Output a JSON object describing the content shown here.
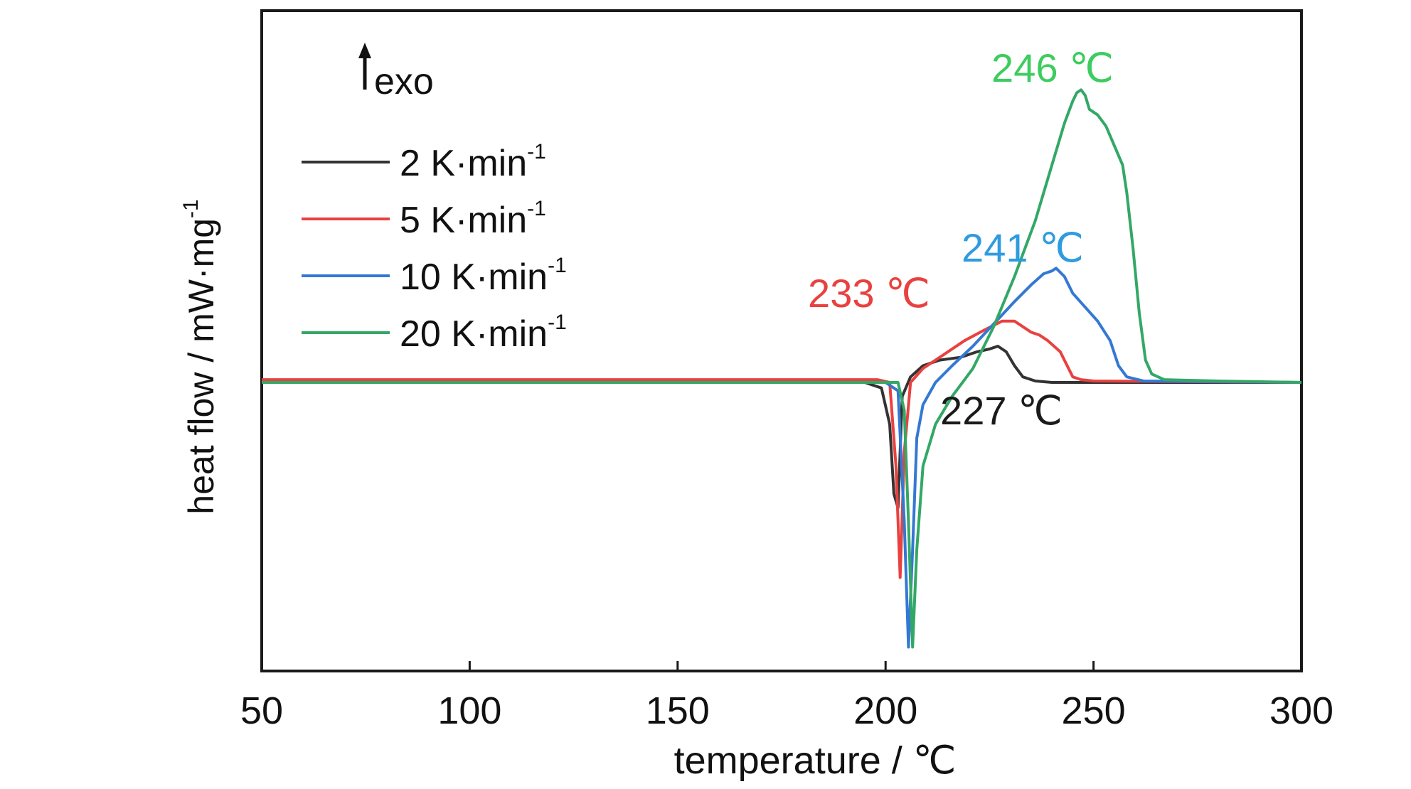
{
  "chart_data": {
    "type": "line",
    "xlabel": "temperature / ℃",
    "ylabel": "heat flow / mW·mg",
    "ylabel_sup": "-1",
    "xlim": [
      50,
      300
    ],
    "xticks": [
      "50",
      "100",
      "150",
      "200",
      "250",
      "300"
    ],
    "ylim": [
      -1.0,
      1.2
    ],
    "grid": false,
    "exo_label": "exo",
    "legend_position": "top-left",
    "series": [
      {
        "name": "2 K·min",
        "name_sup": "-1",
        "color": "#333333",
        "x": [
          50,
          195,
          199,
          201,
          202,
          203,
          204,
          206,
          209,
          213,
          218,
          222,
          225,
          227,
          229,
          231,
          233,
          236,
          240,
          250,
          300
        ],
        "y": [
          0,
          0,
          -0.02,
          -0.15,
          -0.4,
          -0.45,
          -0.05,
          0.02,
          0.06,
          0.08,
          0.09,
          0.11,
          0.12,
          0.13,
          0.11,
          0.06,
          0.02,
          0.005,
          0,
          0,
          0
        ]
      },
      {
        "name": "5 K·min",
        "name_sup": "-1",
        "color": "#e8413f",
        "x": [
          50,
          198,
          201,
          202.5,
          203.5,
          204.5,
          206,
          209,
          214,
          219,
          224,
          228,
          231,
          233,
          235,
          237,
          239,
          242,
          244,
          245,
          247,
          250,
          300
        ],
        "y": [
          0.01,
          0.01,
          0.0,
          -0.3,
          -0.7,
          -0.25,
          0.0,
          0.05,
          0.1,
          0.15,
          0.19,
          0.22,
          0.22,
          0.2,
          0.18,
          0.17,
          0.15,
          0.11,
          0.05,
          0.02,
          0.01,
          0.005,
          0.0
        ]
      },
      {
        "name": "10 K·min",
        "name_sup": "-1",
        "color": "#3478d4",
        "x": [
          50,
          200,
          203,
          204.5,
          205.5,
          206.5,
          207.5,
          209,
          212,
          216,
          221,
          226,
          231,
          235,
          238,
          240,
          241,
          243,
          245,
          248,
          251,
          254,
          256,
          258,
          262,
          300
        ],
        "y": [
          0,
          0,
          -0.03,
          -0.5,
          -0.95,
          -0.6,
          -0.2,
          -0.08,
          0.0,
          0.06,
          0.13,
          0.21,
          0.29,
          0.35,
          0.39,
          0.4,
          0.41,
          0.38,
          0.32,
          0.27,
          0.22,
          0.15,
          0.06,
          0.02,
          0.005,
          0.0
        ]
      },
      {
        "name": "20 K·min",
        "name_sup": "-1",
        "color": "#33a866",
        "x": [
          50,
          203,
          204.5,
          205.5,
          206.5,
          207.5,
          209,
          212,
          216,
          221,
          226,
          231,
          236,
          240,
          243,
          245,
          246,
          247,
          248,
          249,
          251,
          253,
          255,
          257,
          258,
          259.5,
          261,
          262.5,
          264,
          267,
          280,
          300
        ],
        "y": [
          0,
          0,
          -0.1,
          -0.5,
          -0.95,
          -0.6,
          -0.3,
          -0.15,
          -0.05,
          0.05,
          0.2,
          0.38,
          0.58,
          0.78,
          0.93,
          1.01,
          1.04,
          1.05,
          1.03,
          0.98,
          0.96,
          0.92,
          0.85,
          0.78,
          0.68,
          0.48,
          0.25,
          0.08,
          0.03,
          0.01,
          0.005,
          0.0
        ]
      }
    ],
    "annotations": [
      {
        "text": "246 ℃",
        "color": "#3dcc5f",
        "x": 246,
        "y": 1.05
      },
      {
        "text": "241 ℃",
        "color": "#2f9be0",
        "x": 241,
        "y": 0.41
      },
      {
        "text": "233 ℃",
        "color": "#e8413f",
        "x": 233,
        "y": 0.22
      },
      {
        "text": "227 ℃",
        "color": "#1a1a1a",
        "x": 227,
        "y": 0.13
      }
    ]
  }
}
